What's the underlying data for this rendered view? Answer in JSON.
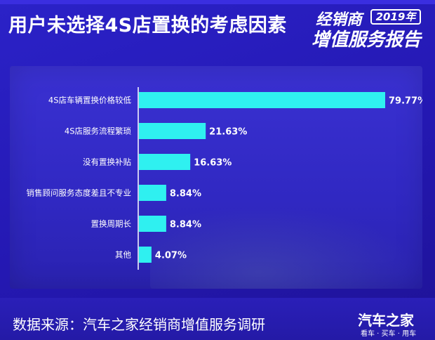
{
  "header": {
    "title": "用户未选择4S店置换的考虑因素",
    "logo_line1": "经销商",
    "logo_year": "2019年",
    "logo_line2": "增值服务报告"
  },
  "chart_data": {
    "type": "bar",
    "orientation": "horizontal",
    "categories": [
      "4S店车辆置换价格较低",
      "4S店服务流程繁琐",
      "没有置换补贴",
      "销售顾问服务态度差且不专业",
      "置换周期长",
      "其他"
    ],
    "values": [
      79.77,
      21.63,
      16.63,
      8.84,
      8.84,
      4.07
    ],
    "value_labels": [
      "79.77%",
      "21.63%",
      "16.63%",
      "8.84%",
      "8.84%",
      "4.07%"
    ],
    "xlim": [
      0,
      100
    ],
    "colors": {
      "bar": "#2ff0f0",
      "label": "#ffffff",
      "axis": "#ffffff"
    }
  },
  "footer": {
    "source": "数据来源：汽车之家经销商增值服务调研",
    "brand": "汽车之家",
    "tagline": "看车 · 买车 · 用车"
  }
}
